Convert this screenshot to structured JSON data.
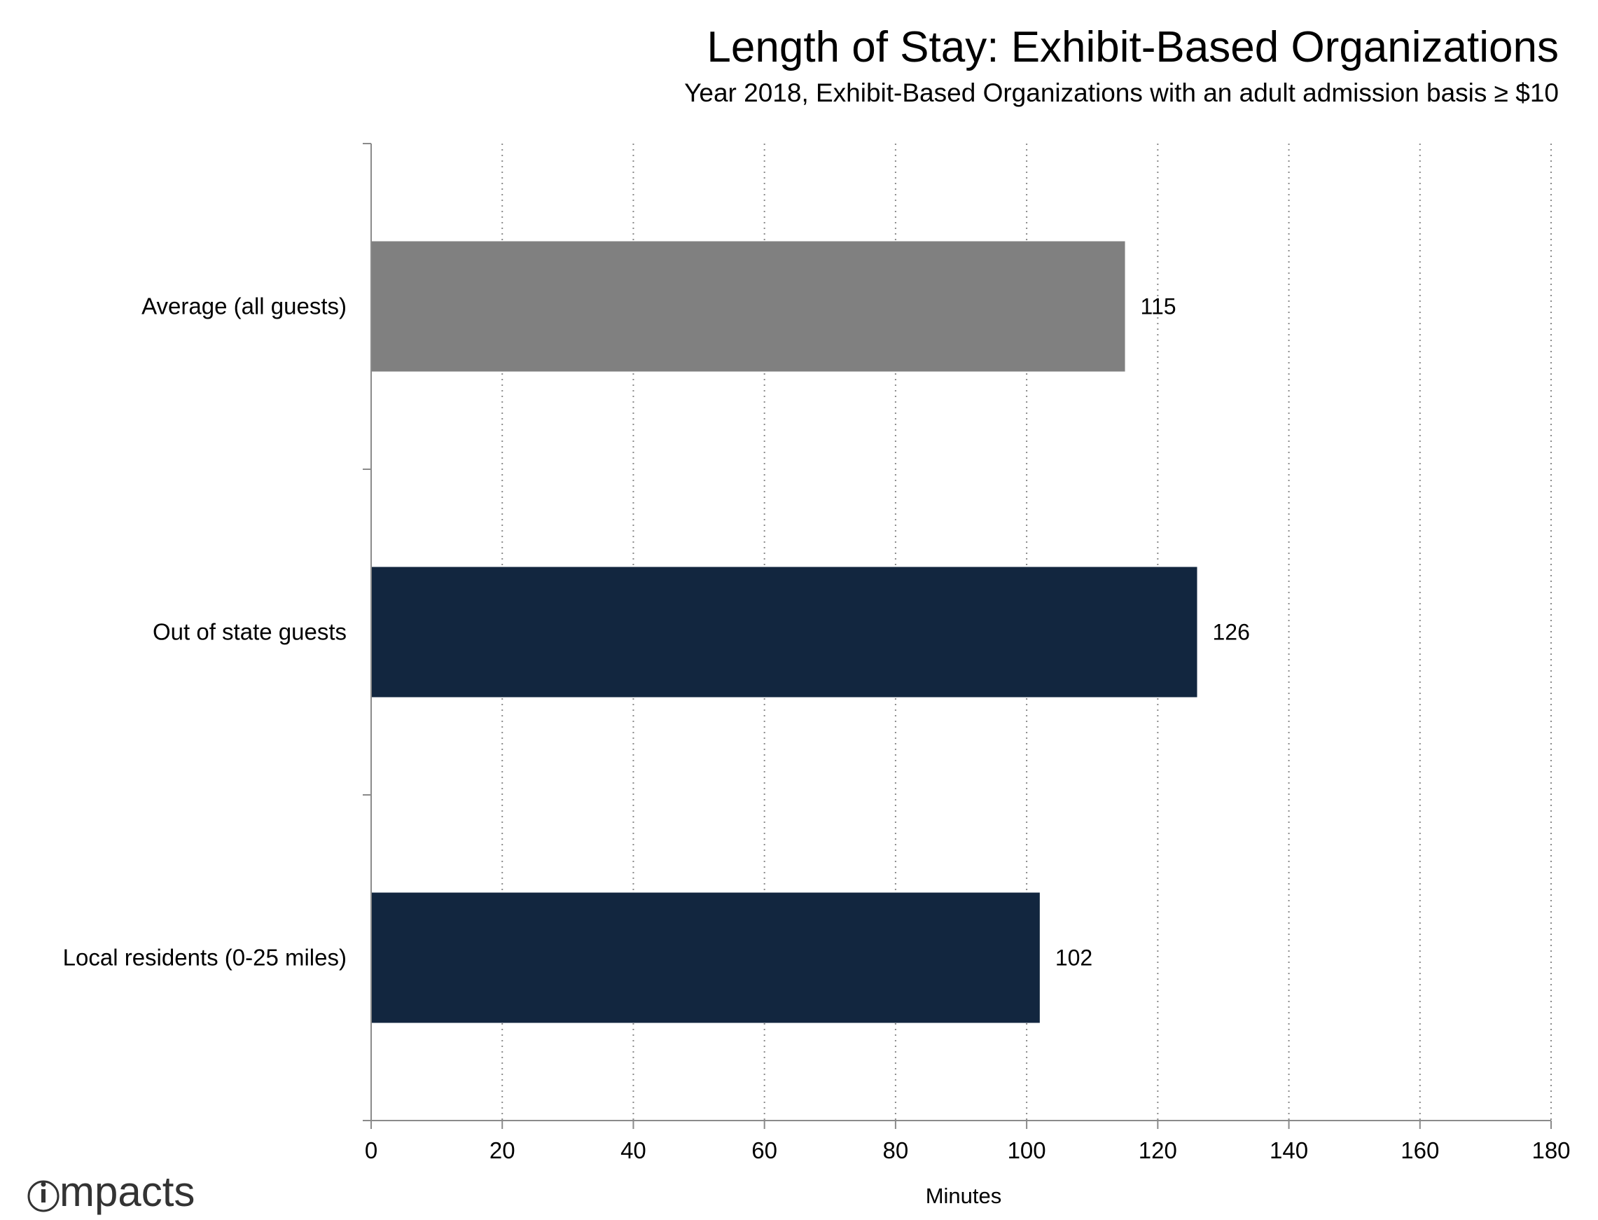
{
  "chart_data": {
    "type": "bar",
    "orientation": "horizontal",
    "title": "Length of Stay: Exhibit-Based Organizations",
    "subtitle": "Year 2018, Exhibit-Based Organizations with an adult admission basis ≥ $10",
    "categories": [
      "Average (all guests)",
      "Out of state guests",
      "Local residents (0-25 miles)"
    ],
    "values": [
      115,
      126,
      102
    ],
    "data_labels": [
      "115",
      "126",
      "102"
    ],
    "colors": [
      "#808080",
      "#12263f",
      "#12263f"
    ],
    "xlabel": "Minutes",
    "ylabel": "",
    "xlim": [
      0,
      180
    ],
    "xticks": [
      0,
      20,
      40,
      60,
      80,
      100,
      120,
      140,
      160,
      180
    ],
    "grid": "vertical-dotted",
    "legend": "none"
  },
  "logo": {
    "text": "impacts"
  }
}
